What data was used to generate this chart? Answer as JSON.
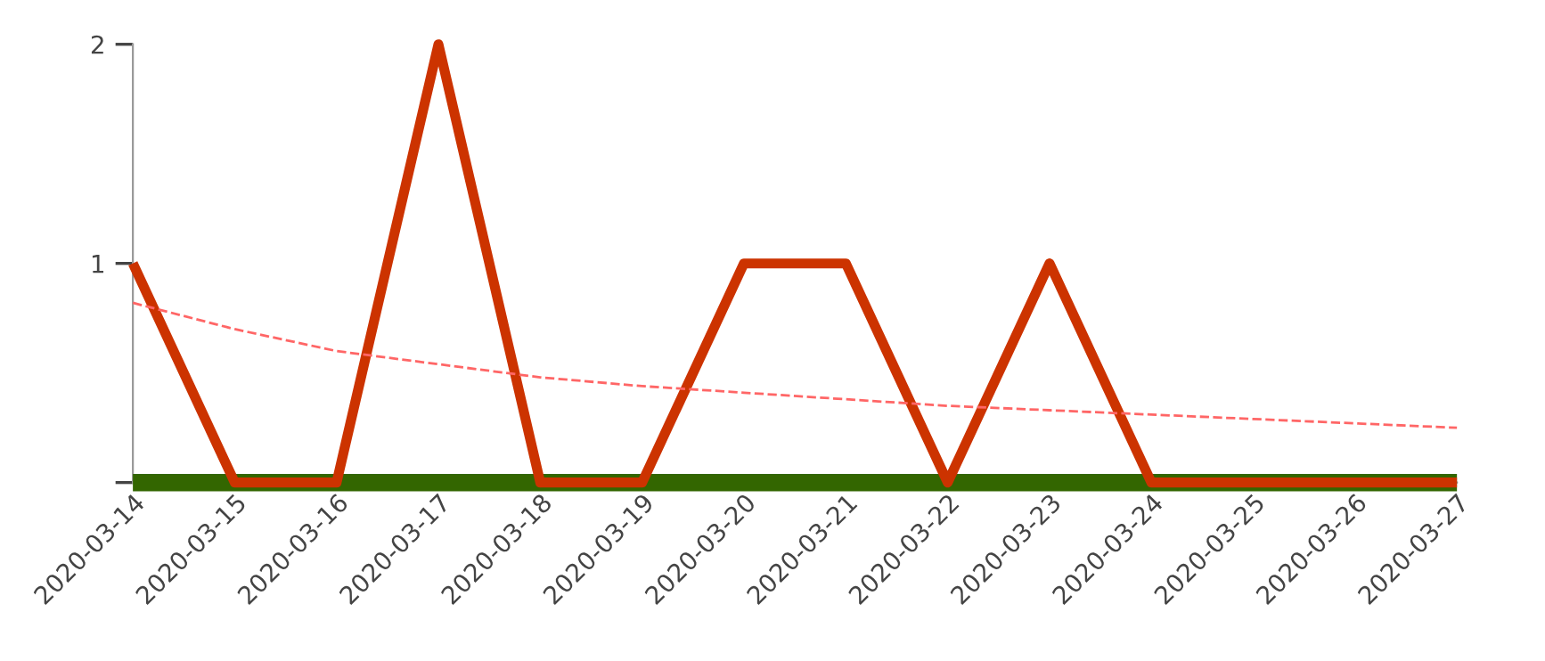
{
  "chart_data": {
    "type": "line",
    "categories": [
      "2020-03-14",
      "2020-03-15",
      "2020-03-16",
      "2020-03-17",
      "2020-03-18",
      "2020-03-19",
      "2020-03-20",
      "2020-03-21",
      "2020-03-22",
      "2020-03-23",
      "2020-03-24",
      "2020-03-25",
      "2020-03-26",
      "2020-03-27"
    ],
    "series": [
      {
        "color": "#336600",
        "values": [
          0,
          0,
          0,
          0,
          0,
          0,
          0,
          0,
          0,
          0,
          0,
          0,
          0,
          0
        ],
        "line_style": "solid"
      },
      {
        "color": "#cc3300",
        "values": [
          1,
          0,
          0,
          2,
          0,
          0,
          1,
          1,
          0,
          1,
          0,
          0,
          0,
          0
        ],
        "line_style": "solid"
      },
      {
        "color": "#ff6666",
        "values": [
          0.82,
          0.7,
          0.6,
          0.54,
          0.48,
          0.44,
          0.41,
          0.38,
          0.35,
          0.33,
          0.31,
          0.29,
          0.27,
          0.25
        ],
        "line_style": "dashed"
      }
    ],
    "ylim": [
      0,
      2
    ],
    "yticks": [
      {
        "value": 0,
        "label": null
      },
      1,
      2
    ],
    "grid": false,
    "legend": false,
    "marker": "none"
  }
}
